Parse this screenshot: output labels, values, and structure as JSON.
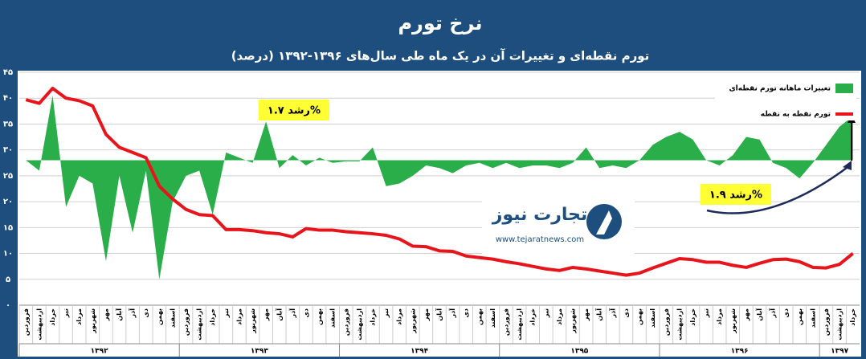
{
  "chart_data": {
    "type": "line-area",
    "title": "نرخ تورم",
    "subtitle": "تورم نقطه‌ای و تغییرات آن در یک ماه طی سال‌های ۱۳۹۶-۱۳۹۲ (درصد)",
    "categories": [
      "فروردین",
      "اردیبهشت",
      "خرداد",
      "تیر",
      "مرداد",
      "شهریور",
      "مهر",
      "آبان",
      "آذر",
      "دی",
      "بهمن",
      "اسفند",
      "فروردین",
      "اردیبهشت",
      "خرداد",
      "تیر",
      "مرداد",
      "شهریور",
      "مهر",
      "آبان",
      "آذر",
      "دی",
      "بهمن",
      "اسفند",
      "فروردین",
      "اردیبهشت",
      "خرداد",
      "تیر",
      "مرداد",
      "شهریور",
      "مهر",
      "آبان",
      "آذر",
      "دی",
      "بهمن",
      "اسفند",
      "فروردین",
      "اردیبهشت",
      "خرداد",
      "تیر",
      "مرداد",
      "شهریور",
      "مهر",
      "آبان",
      "آذر",
      "دی",
      "بهمن",
      "اسفند",
      "فروردین",
      "اردیبهشت",
      "خرداد",
      "تیر",
      "مرداد",
      "شهریور",
      "مهر",
      "آبان",
      "آذر",
      "دی",
      "بهمن",
      "اسفند",
      "فروردین",
      "اردیبهشت",
      "خرداد"
    ],
    "years": [
      "۱۳۹۲",
      "۱۳۹۳",
      "۱۳۹۴",
      "۱۳۹۵",
      "۱۳۹۶",
      "۱۳۹۷"
    ],
    "series": [
      {
        "name": "تغییرات ماهانه تورم نقطه‌ای",
        "kind": "area",
        "color": "#2aae4a",
        "baseline": 28,
        "values": [
          28,
          26,
          40.5,
          19,
          25,
          23.5,
          8.5,
          25,
          14,
          26,
          5,
          20,
          25,
          26,
          17.5,
          29.5,
          28.5,
          27.5,
          35.5,
          26.5,
          29,
          27,
          28.5,
          27.5,
          27.8,
          27.8,
          30.5,
          23,
          23.5,
          25,
          27,
          26.5,
          25.5,
          27,
          27.5,
          26.5,
          27.5,
          26.5,
          27,
          27,
          26.5,
          27.5,
          30.5,
          26.5,
          27,
          26.5,
          28,
          31,
          32.5,
          33.5,
          32,
          28,
          27,
          29,
          32.5,
          32,
          27.5,
          26.5,
          24.5,
          27.5,
          31,
          34.5,
          36.5
        ]
      },
      {
        "name": "تورم نقطه به نقطه",
        "kind": "line",
        "color": "#e8141b",
        "values": [
          39.7,
          39.0,
          41.9,
          40.0,
          39.5,
          38.5,
          33.0,
          30.5,
          29.5,
          28.5,
          23.0,
          20.5,
          18.5,
          17.5,
          17.3,
          14.6,
          14.6,
          14.4,
          14.0,
          13.8,
          13.2,
          14.8,
          14.5,
          14.5,
          14.2,
          14.0,
          13.8,
          13.5,
          12.8,
          11.4,
          11.3,
          10.5,
          10.4,
          9.5,
          9.2,
          8.9,
          8.4,
          8.0,
          7.5,
          7.0,
          6.7,
          7.3,
          7.0,
          6.6,
          6.2,
          5.8,
          6.2,
          7.2,
          8.1,
          9.0,
          8.8,
          8.3,
          8.3,
          7.7,
          7.3,
          8.1,
          8.8,
          8.9,
          8.4,
          7.3,
          7.2,
          7.9,
          10.0
        ]
      }
    ],
    "ylim": [
      0,
      45
    ],
    "yticks": [
      {
        "value": 0,
        "label": "۰"
      },
      {
        "value": 5,
        "label": "۵"
      },
      {
        "value": 10,
        "label": "۱۰"
      },
      {
        "value": 15,
        "label": "۱۵"
      },
      {
        "value": 20,
        "label": "۲۰"
      },
      {
        "value": 25,
        "label": "۲۵"
      },
      {
        "value": 30,
        "label": "۳۰"
      },
      {
        "value": 35,
        "label": "۳۵"
      },
      {
        "value": 40,
        "label": "۴۰"
      },
      {
        "value": 45,
        "label": "۴۵"
      }
    ],
    "grid": true,
    "legend": "top-right",
    "annotations": [
      "رشد ۱.۷%",
      "رشد ۱.۹%"
    ]
  },
  "logo": {
    "name": "تجارت نیوز",
    "url": "www.tejaratnews.com"
  }
}
